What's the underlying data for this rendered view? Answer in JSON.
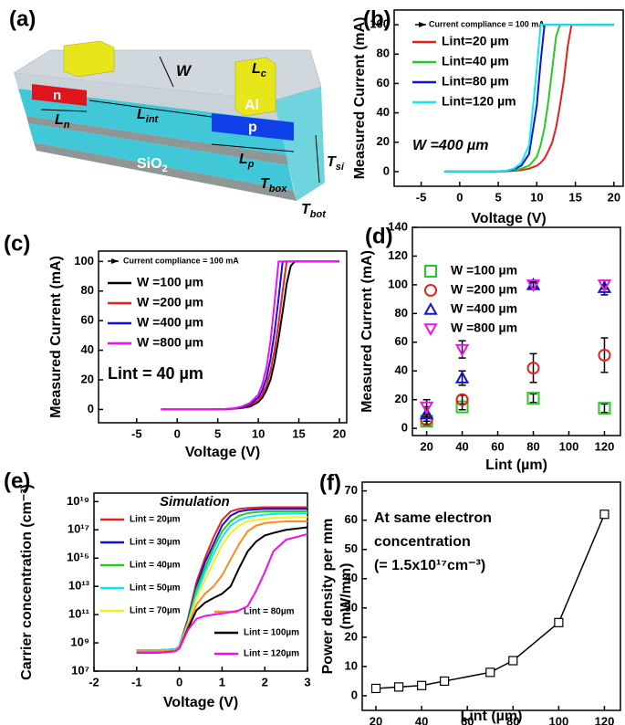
{
  "diagram": {
    "panel": "(a)",
    "labels": [
      {
        "text": "n"
      },
      {
        "text": "Al"
      },
      {
        "text": "p"
      },
      {
        "text": "SiO",
        "sub": "2"
      },
      {
        "text": "W"
      },
      {
        "text": "L",
        "sub": "c"
      },
      {
        "text": "L",
        "sub": "n"
      },
      {
        "text": "L",
        "sub": "int"
      },
      {
        "text": "L",
        "sub": "p"
      },
      {
        "text": "T",
        "sub": "si"
      },
      {
        "text": "T",
        "sub": "box"
      },
      {
        "text": "T",
        "sub": "bot"
      }
    ]
  },
  "chart_data": [
    {
      "type": "line",
      "panel": "(b)",
      "x_label": "Voltage (V)",
      "y_label": [
        "Measured Current (mA)"
      ],
      "xlim": [
        -8.5,
        21.2
      ],
      "ylim": [
        -10,
        110
      ],
      "xticks": [
        -5,
        0,
        5,
        10,
        15,
        20
      ],
      "yticks": [
        0,
        20,
        40,
        60,
        80,
        100
      ],
      "annotations": [
        "Current compliance = 100 mA",
        "W =400 µm"
      ],
      "x": [
        -2,
        0,
        2,
        4,
        6,
        7,
        8,
        9,
        10,
        10.5,
        11,
        11.5,
        12,
        12.5,
        13,
        13.5,
        14,
        14.5,
        16,
        18,
        20
      ],
      "series": [
        {
          "name": "Lint=20 µm",
          "color": "#e8201c",
          "values": [
            0,
            0,
            0,
            0,
            0.2,
            0.5,
            1,
            2,
            4,
            6,
            9,
            14,
            20,
            30,
            45,
            62,
            85,
            100,
            100,
            100,
            100
          ]
        },
        {
          "name": "Lint=40 µm",
          "color": "#22cc22",
          "values": [
            0,
            0,
            0,
            0,
            0.3,
            0.8,
            2,
            4,
            10,
            18,
            30,
            48,
            70,
            92,
            100,
            100,
            100,
            100,
            100,
            100,
            100
          ]
        },
        {
          "name": "Lint=80 µm",
          "color": "#1010e0",
          "values": [
            0,
            0,
            0,
            0,
            0.5,
            1.5,
            4,
            12,
            45,
            75,
            100,
            100,
            100,
            100,
            100,
            100,
            100,
            100,
            100,
            100,
            100
          ]
        },
        {
          "name": "Lint=120 µm",
          "color": "#10e8f0",
          "values": [
            0,
            0,
            0,
            0,
            0.6,
            2,
            6,
            18,
            70,
            100,
            100,
            100,
            100,
            100,
            100,
            100,
            100,
            100,
            100,
            100,
            100
          ]
        }
      ]
    },
    {
      "type": "line",
      "panel": "(c)",
      "x_label": "Voltage (V)",
      "y_label": [
        "Measured Current (mA)"
      ],
      "xlim": [
        -9.7,
        20.9
      ],
      "ylim": [
        -9,
        107
      ],
      "xticks": [
        -5,
        0,
        5,
        10,
        15,
        20
      ],
      "yticks": [
        0,
        20,
        40,
        60,
        80,
        100
      ],
      "annotations": [
        "Current compliance = 100 mA",
        "Lint = 40 µm"
      ],
      "x": [
        -2,
        0,
        2,
        4,
        6,
        7,
        8,
        9,
        10,
        10.5,
        11,
        11.5,
        12,
        12.5,
        13,
        13.5,
        14,
        14.5,
        16,
        18,
        20
      ],
      "series": [
        {
          "name": "W =100 µm",
          "color": "#000000",
          "values": [
            0,
            0,
            0,
            0,
            0.2,
            0.5,
            1,
            2,
            5,
            8,
            13,
            20,
            32,
            48,
            66,
            85,
            97,
            100,
            100,
            100,
            100
          ]
        },
        {
          "name": "W =200 µm",
          "color": "#e8201c",
          "values": [
            0,
            0,
            0,
            0,
            0.2,
            0.6,
            1.3,
            3,
            6,
            10,
            16,
            26,
            40,
            58,
            80,
            100,
            100,
            100,
            100,
            100,
            100
          ]
        },
        {
          "name": "W =400 µm",
          "color": "#1010e0",
          "values": [
            0,
            0,
            0,
            0,
            0.3,
            0.7,
            1.6,
            3.5,
            8,
            13,
            21,
            34,
            52,
            75,
            100,
            100,
            100,
            100,
            100,
            100,
            100
          ]
        },
        {
          "name": "W =800 µm",
          "color": "#ee10ee",
          "values": [
            0,
            0,
            0,
            0,
            0.3,
            0.8,
            2,
            4.5,
            10,
            17,
            28,
            46,
            72,
            100,
            100,
            100,
            100,
            100,
            100,
            100,
            100
          ]
        }
      ]
    },
    {
      "type": "scatter",
      "panel": "(d)",
      "x_label": "Lint (µm)",
      "y_label": [
        "Measured Current (mA)"
      ],
      "xlim": [
        12,
        129
      ],
      "ylim": [
        -5,
        140
      ],
      "xticks": [
        20,
        40,
        60,
        80,
        100,
        120
      ],
      "yticks": [
        0,
        20,
        40,
        60,
        80,
        100,
        120,
        140
      ],
      "x": [
        20,
        40,
        80,
        120
      ],
      "series": [
        {
          "name": "W =100 µm",
          "color": "#22cc22",
          "marker": "square",
          "values": [
            5,
            15,
            21,
            14
          ],
          "errors": [
            3,
            2,
            3,
            3
          ]
        },
        {
          "name": "W =200 µm",
          "color": "#e8201c",
          "marker": "circle",
          "values": [
            6,
            20,
            42,
            51
          ],
          "errors": [
            3,
            3,
            10,
            12
          ]
        },
        {
          "name": "W =400 µm",
          "color": "#1010e0",
          "marker": "triangle-up",
          "values": [
            10,
            35,
            100,
            98
          ],
          "errors": [
            5,
            5,
            2,
            5
          ]
        },
        {
          "name": "W =800 µm",
          "color": "#ee10ee",
          "marker": "triangle-down",
          "values": [
            15,
            55,
            100,
            100
          ],
          "errors": [
            5,
            6,
            2,
            3
          ]
        }
      ]
    },
    {
      "type": "line",
      "panel": "(e)",
      "x_label": "Voltage (V)",
      "y_label": [
        "Carrier concentration (cm⁻³)"
      ],
      "log_y": true,
      "xlim": [
        -2,
        3
      ],
      "ylim": [
        10000000.0,
        4e+19
      ],
      "xticks": [
        -2,
        -1,
        0,
        1,
        2,
        3
      ],
      "yticks": [
        {
          "value": 10000000.0,
          "label": "10⁷"
        },
        {
          "value": 1000000000.0,
          "label": "10⁹"
        },
        {
          "value": 100000000000.0,
          "label": "10¹¹"
        },
        {
          "value": 10000000000000.0,
          "label": "10¹³"
        },
        {
          "value": 1000000000000000.0,
          "label": "10¹⁵"
        },
        {
          "value": 1e+17,
          "label": "10¹⁷"
        },
        {
          "value": 1e+19,
          "label": "10¹⁹"
        }
      ],
      "annotations": [
        "Simulation"
      ],
      "x": [
        -1,
        -0.5,
        -0.1,
        0,
        0.2,
        0.4,
        0.6,
        0.8,
        1,
        1.2,
        1.4,
        1.6,
        1.8,
        2,
        2.2,
        2.5,
        3
      ],
      "series": [
        {
          "name": "Lint = 20µm",
          "color": "#e8201c",
          "values": [
            300000000.0,
            300000000.0,
            350000000.0,
            600000000.0,
            50000000000.0,
            20000000000000.0,
            1000000000000000.0,
            3e+16,
            5e+17,
            2e+18,
            3e+18,
            3.5e+18,
            3.8e+18,
            4e+18,
            4e+18,
            4e+18,
            4e+18
          ]
        },
        {
          "name": "Lint = 30µm",
          "color": "#1010e0",
          "values": [
            300000000.0,
            300000000.0,
            350000000.0,
            600000000.0,
            40000000000.0,
            10000000000000.0,
            500000000000000.0,
            1e+16,
            2e+17,
            1e+18,
            2e+18,
            2.5e+18,
            2.8e+18,
            3e+18,
            3e+18,
            3e+18,
            3e+18
          ]
        },
        {
          "name": "Lint = 40µm",
          "color": "#22cc22",
          "values": [
            300000000.0,
            300000000.0,
            350000000.0,
            600000000.0,
            30000000000.0,
            6000000000000.0,
            200000000000000.0,
            5000000000000000.0,
            8e+16,
            4e+17,
            1e+18,
            1.5e+18,
            1.8e+18,
            2e+18,
            2e+18,
            2e+18,
            2e+18
          ]
        },
        {
          "name": "Lint = 50µm",
          "color": "#10e8f0",
          "values": [
            300000000.0,
            300000000.0,
            350000000.0,
            600000000.0,
            25000000000.0,
            3000000000000.0,
            100000000000000.0,
            2000000000000000.0,
            3e+16,
            2e+17,
            5e+17,
            8e+17,
            1e+18,
            1.2e+18,
            1.3e+18,
            1.4e+18,
            1.5e+18
          ]
        },
        {
          "name": "Lint = 70µm",
          "color": "#f0f020",
          "values": [
            250000000.0,
            250000000.0,
            300000000.0,
            500000000.0,
            20000000000.0,
            1500000000000.0,
            30000000000000.0,
            500000000000000.0,
            8000000000000000.0,
            6e+16,
            2e+17,
            4e+17,
            5e+17,
            6e+17,
            7e+17,
            7.5e+17,
            8e+17
          ]
        },
        {
          "name": "Lint = 80µm",
          "color": "#ff8c1a",
          "values": [
            250000000.0,
            250000000.0,
            300000000.0,
            500000000.0,
            15000000000.0,
            500000000000.0,
            3000000000000.0,
            10000000000000.0,
            60000000000000.0,
            800000000000000.0,
            1e+16,
            8e+16,
            2e+17,
            3e+17,
            3.5e+17,
            4e+17,
            4e+17
          ]
        },
        {
          "name": "Lint = 100µm",
          "color": "#000000",
          "values": [
            200000000.0,
            200000000.0,
            250000000.0,
            400000000.0,
            10000000000.0,
            200000000000.0,
            700000000000.0,
            1500000000000.0,
            3000000000000.0,
            10000000000000.0,
            200000000000000.0,
            3000000000000000.0,
            1.5e+16,
            4e+16,
            6e+16,
            1e+17,
            1.5e+17
          ]
        },
        {
          "name": "Lint = 120µm",
          "color": "#ee10ee",
          "values": [
            200000000.0,
            200000000.0,
            250000000.0,
            400000000.0,
            8000000000.0,
            50000000000.0,
            80000000000.0,
            100000000000.0,
            120000000000.0,
            150000000000.0,
            200000000000.0,
            400000000000.0,
            5000000000000.0,
            100000000000000.0,
            3000000000000000.0,
            2e+16,
            5e+16
          ]
        }
      ]
    },
    {
      "type": "line",
      "panel": "(f)",
      "x_label": "Lint (µm)",
      "y_label": [
        "Power density per mm",
        "(mW/mm)"
      ],
      "xlim": [
        14,
        127
      ],
      "ylim": [
        -5,
        73
      ],
      "xticks": [
        20,
        40,
        60,
        80,
        100,
        120
      ],
      "yticks": [
        0,
        10,
        20,
        30,
        40,
        50,
        60,
        70
      ],
      "annotations": [
        "At same electron",
        "concentration",
        "(= 1.5x10¹⁷cm⁻³)"
      ],
      "x": [
        20,
        30,
        40,
        50,
        70,
        80,
        100,
        120
      ],
      "series": [
        {
          "color": "#000000",
          "marker": "square-open",
          "values": [
            2.5,
            3,
            3.5,
            5,
            8,
            12,
            25,
            62
          ]
        }
      ]
    }
  ]
}
